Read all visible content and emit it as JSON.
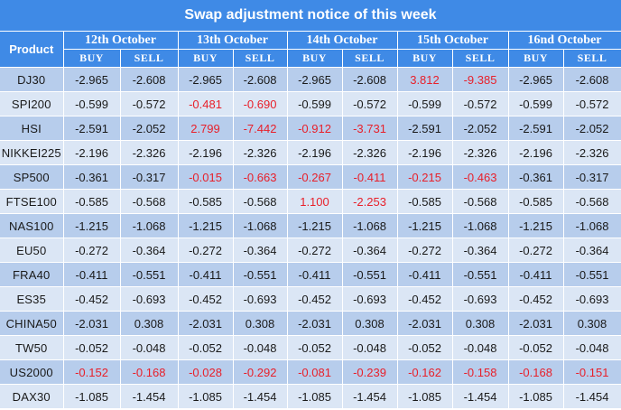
{
  "title": "Swap adjustment notice of this week",
  "product_header": "Product",
  "dates": [
    "12th  October",
    "13th  October",
    "14th  October",
    "15th  October",
    "16nd  October"
  ],
  "buy_label": "BUY",
  "sell_label": "SELL",
  "colors": {
    "header_bg": "#3f8ae6",
    "row_dark": "#b7cdec",
    "row_light": "#dbe6f5",
    "highlight": "#e8202a"
  },
  "rows": [
    {
      "product": "DJ30",
      "values": [
        {
          "v": "-2.965",
          "h": false
        },
        {
          "v": "-2.608",
          "h": false
        },
        {
          "v": "-2.965",
          "h": false
        },
        {
          "v": "-2.608",
          "h": false
        },
        {
          "v": "-2.965",
          "h": false
        },
        {
          "v": "-2.608",
          "h": false
        },
        {
          "v": "3.812",
          "h": true
        },
        {
          "v": "-9.385",
          "h": true
        },
        {
          "v": "-2.965",
          "h": false
        },
        {
          "v": "-2.608",
          "h": false
        }
      ]
    },
    {
      "product": "SPI200",
      "values": [
        {
          "v": "-0.599",
          "h": false
        },
        {
          "v": "-0.572",
          "h": false
        },
        {
          "v": "-0.481",
          "h": true
        },
        {
          "v": "-0.690",
          "h": true
        },
        {
          "v": "-0.599",
          "h": false
        },
        {
          "v": "-0.572",
          "h": false
        },
        {
          "v": "-0.599",
          "h": false
        },
        {
          "v": "-0.572",
          "h": false
        },
        {
          "v": "-0.599",
          "h": false
        },
        {
          "v": "-0.572",
          "h": false
        }
      ]
    },
    {
      "product": "HSI",
      "values": [
        {
          "v": "-2.591",
          "h": false
        },
        {
          "v": "-2.052",
          "h": false
        },
        {
          "v": "2.799",
          "h": true
        },
        {
          "v": "-7.442",
          "h": true
        },
        {
          "v": "-0.912",
          "h": true
        },
        {
          "v": "-3.731",
          "h": true
        },
        {
          "v": "-2.591",
          "h": false
        },
        {
          "v": "-2.052",
          "h": false
        },
        {
          "v": "-2.591",
          "h": false
        },
        {
          "v": "-2.052",
          "h": false
        }
      ]
    },
    {
      "product": "NIKKEI225",
      "values": [
        {
          "v": "-2.196",
          "h": false
        },
        {
          "v": "-2.326",
          "h": false
        },
        {
          "v": "-2.196",
          "h": false
        },
        {
          "v": "-2.326",
          "h": false
        },
        {
          "v": "-2.196",
          "h": false
        },
        {
          "v": "-2.326",
          "h": false
        },
        {
          "v": "-2.196",
          "h": false
        },
        {
          "v": "-2.326",
          "h": false
        },
        {
          "v": "-2.196",
          "h": false
        },
        {
          "v": "-2.326",
          "h": false
        }
      ]
    },
    {
      "product": "SP500",
      "values": [
        {
          "v": "-0.361",
          "h": false
        },
        {
          "v": "-0.317",
          "h": false
        },
        {
          "v": "-0.015",
          "h": true
        },
        {
          "v": "-0.663",
          "h": true
        },
        {
          "v": "-0.267",
          "h": true
        },
        {
          "v": "-0.411",
          "h": true
        },
        {
          "v": "-0.215",
          "h": true
        },
        {
          "v": "-0.463",
          "h": true
        },
        {
          "v": "-0.361",
          "h": false
        },
        {
          "v": "-0.317",
          "h": false
        }
      ]
    },
    {
      "product": "FTSE100",
      "values": [
        {
          "v": "-0.585",
          "h": false
        },
        {
          "v": "-0.568",
          "h": false
        },
        {
          "v": "-0.585",
          "h": false
        },
        {
          "v": "-0.568",
          "h": false
        },
        {
          "v": "1.100",
          "h": true
        },
        {
          "v": "-2.253",
          "h": true
        },
        {
          "v": "-0.585",
          "h": false
        },
        {
          "v": "-0.568",
          "h": false
        },
        {
          "v": "-0.585",
          "h": false
        },
        {
          "v": "-0.568",
          "h": false
        }
      ]
    },
    {
      "product": "NAS100",
      "values": [
        {
          "v": "-1.215",
          "h": false
        },
        {
          "v": "-1.068",
          "h": false
        },
        {
          "v": "-1.215",
          "h": false
        },
        {
          "v": "-1.068",
          "h": false
        },
        {
          "v": "-1.215",
          "h": false
        },
        {
          "v": "-1.068",
          "h": false
        },
        {
          "v": "-1.215",
          "h": false
        },
        {
          "v": "-1.068",
          "h": false
        },
        {
          "v": "-1.215",
          "h": false
        },
        {
          "v": "-1.068",
          "h": false
        }
      ]
    },
    {
      "product": "EU50",
      "values": [
        {
          "v": "-0.272",
          "h": false
        },
        {
          "v": "-0.364",
          "h": false
        },
        {
          "v": "-0.272",
          "h": false
        },
        {
          "v": "-0.364",
          "h": false
        },
        {
          "v": "-0.272",
          "h": false
        },
        {
          "v": "-0.364",
          "h": false
        },
        {
          "v": "-0.272",
          "h": false
        },
        {
          "v": "-0.364",
          "h": false
        },
        {
          "v": "-0.272",
          "h": false
        },
        {
          "v": "-0.364",
          "h": false
        }
      ]
    },
    {
      "product": "FRA40",
      "values": [
        {
          "v": "-0.411",
          "h": false
        },
        {
          "v": "-0.551",
          "h": false
        },
        {
          "v": "-0.411",
          "h": false
        },
        {
          "v": "-0.551",
          "h": false
        },
        {
          "v": "-0.411",
          "h": false
        },
        {
          "v": "-0.551",
          "h": false
        },
        {
          "v": "-0.411",
          "h": false
        },
        {
          "v": "-0.551",
          "h": false
        },
        {
          "v": "-0.411",
          "h": false
        },
        {
          "v": "-0.551",
          "h": false
        }
      ]
    },
    {
      "product": "ES35",
      "values": [
        {
          "v": "-0.452",
          "h": false
        },
        {
          "v": "-0.693",
          "h": false
        },
        {
          "v": "-0.452",
          "h": false
        },
        {
          "v": "-0.693",
          "h": false
        },
        {
          "v": "-0.452",
          "h": false
        },
        {
          "v": "-0.693",
          "h": false
        },
        {
          "v": "-0.452",
          "h": false
        },
        {
          "v": "-0.693",
          "h": false
        },
        {
          "v": "-0.452",
          "h": false
        },
        {
          "v": "-0.693",
          "h": false
        }
      ]
    },
    {
      "product": "CHINA50",
      "values": [
        {
          "v": "-2.031",
          "h": false
        },
        {
          "v": "0.308",
          "h": false
        },
        {
          "v": "-2.031",
          "h": false
        },
        {
          "v": "0.308",
          "h": false
        },
        {
          "v": "-2.031",
          "h": false
        },
        {
          "v": "0.308",
          "h": false
        },
        {
          "v": "-2.031",
          "h": false
        },
        {
          "v": "0.308",
          "h": false
        },
        {
          "v": "-2.031",
          "h": false
        },
        {
          "v": "0.308",
          "h": false
        }
      ]
    },
    {
      "product": "TW50",
      "values": [
        {
          "v": "-0.052",
          "h": false
        },
        {
          "v": "-0.048",
          "h": false
        },
        {
          "v": "-0.052",
          "h": false
        },
        {
          "v": "-0.048",
          "h": false
        },
        {
          "v": "-0.052",
          "h": false
        },
        {
          "v": "-0.048",
          "h": false
        },
        {
          "v": "-0.052",
          "h": false
        },
        {
          "v": "-0.048",
          "h": false
        },
        {
          "v": "-0.052",
          "h": false
        },
        {
          "v": "-0.048",
          "h": false
        }
      ]
    },
    {
      "product": "US2000",
      "values": [
        {
          "v": "-0.152",
          "h": true
        },
        {
          "v": "-0.168",
          "h": true
        },
        {
          "v": "-0.028",
          "h": true
        },
        {
          "v": "-0.292",
          "h": true
        },
        {
          "v": "-0.081",
          "h": true
        },
        {
          "v": "-0.239",
          "h": true
        },
        {
          "v": "-0.162",
          "h": true
        },
        {
          "v": "-0.158",
          "h": true
        },
        {
          "v": "-0.168",
          "h": true
        },
        {
          "v": "-0.151",
          "h": true
        }
      ]
    },
    {
      "product": "DAX30",
      "values": [
        {
          "v": "-1.085",
          "h": false
        },
        {
          "v": "-1.454",
          "h": false
        },
        {
          "v": "-1.085",
          "h": false
        },
        {
          "v": "-1.454",
          "h": false
        },
        {
          "v": "-1.085",
          "h": false
        },
        {
          "v": "-1.454",
          "h": false
        },
        {
          "v": "-1.085",
          "h": false
        },
        {
          "v": "-1.454",
          "h": false
        },
        {
          "v": "-1.085",
          "h": false
        },
        {
          "v": "-1.454",
          "h": false
        }
      ]
    }
  ]
}
